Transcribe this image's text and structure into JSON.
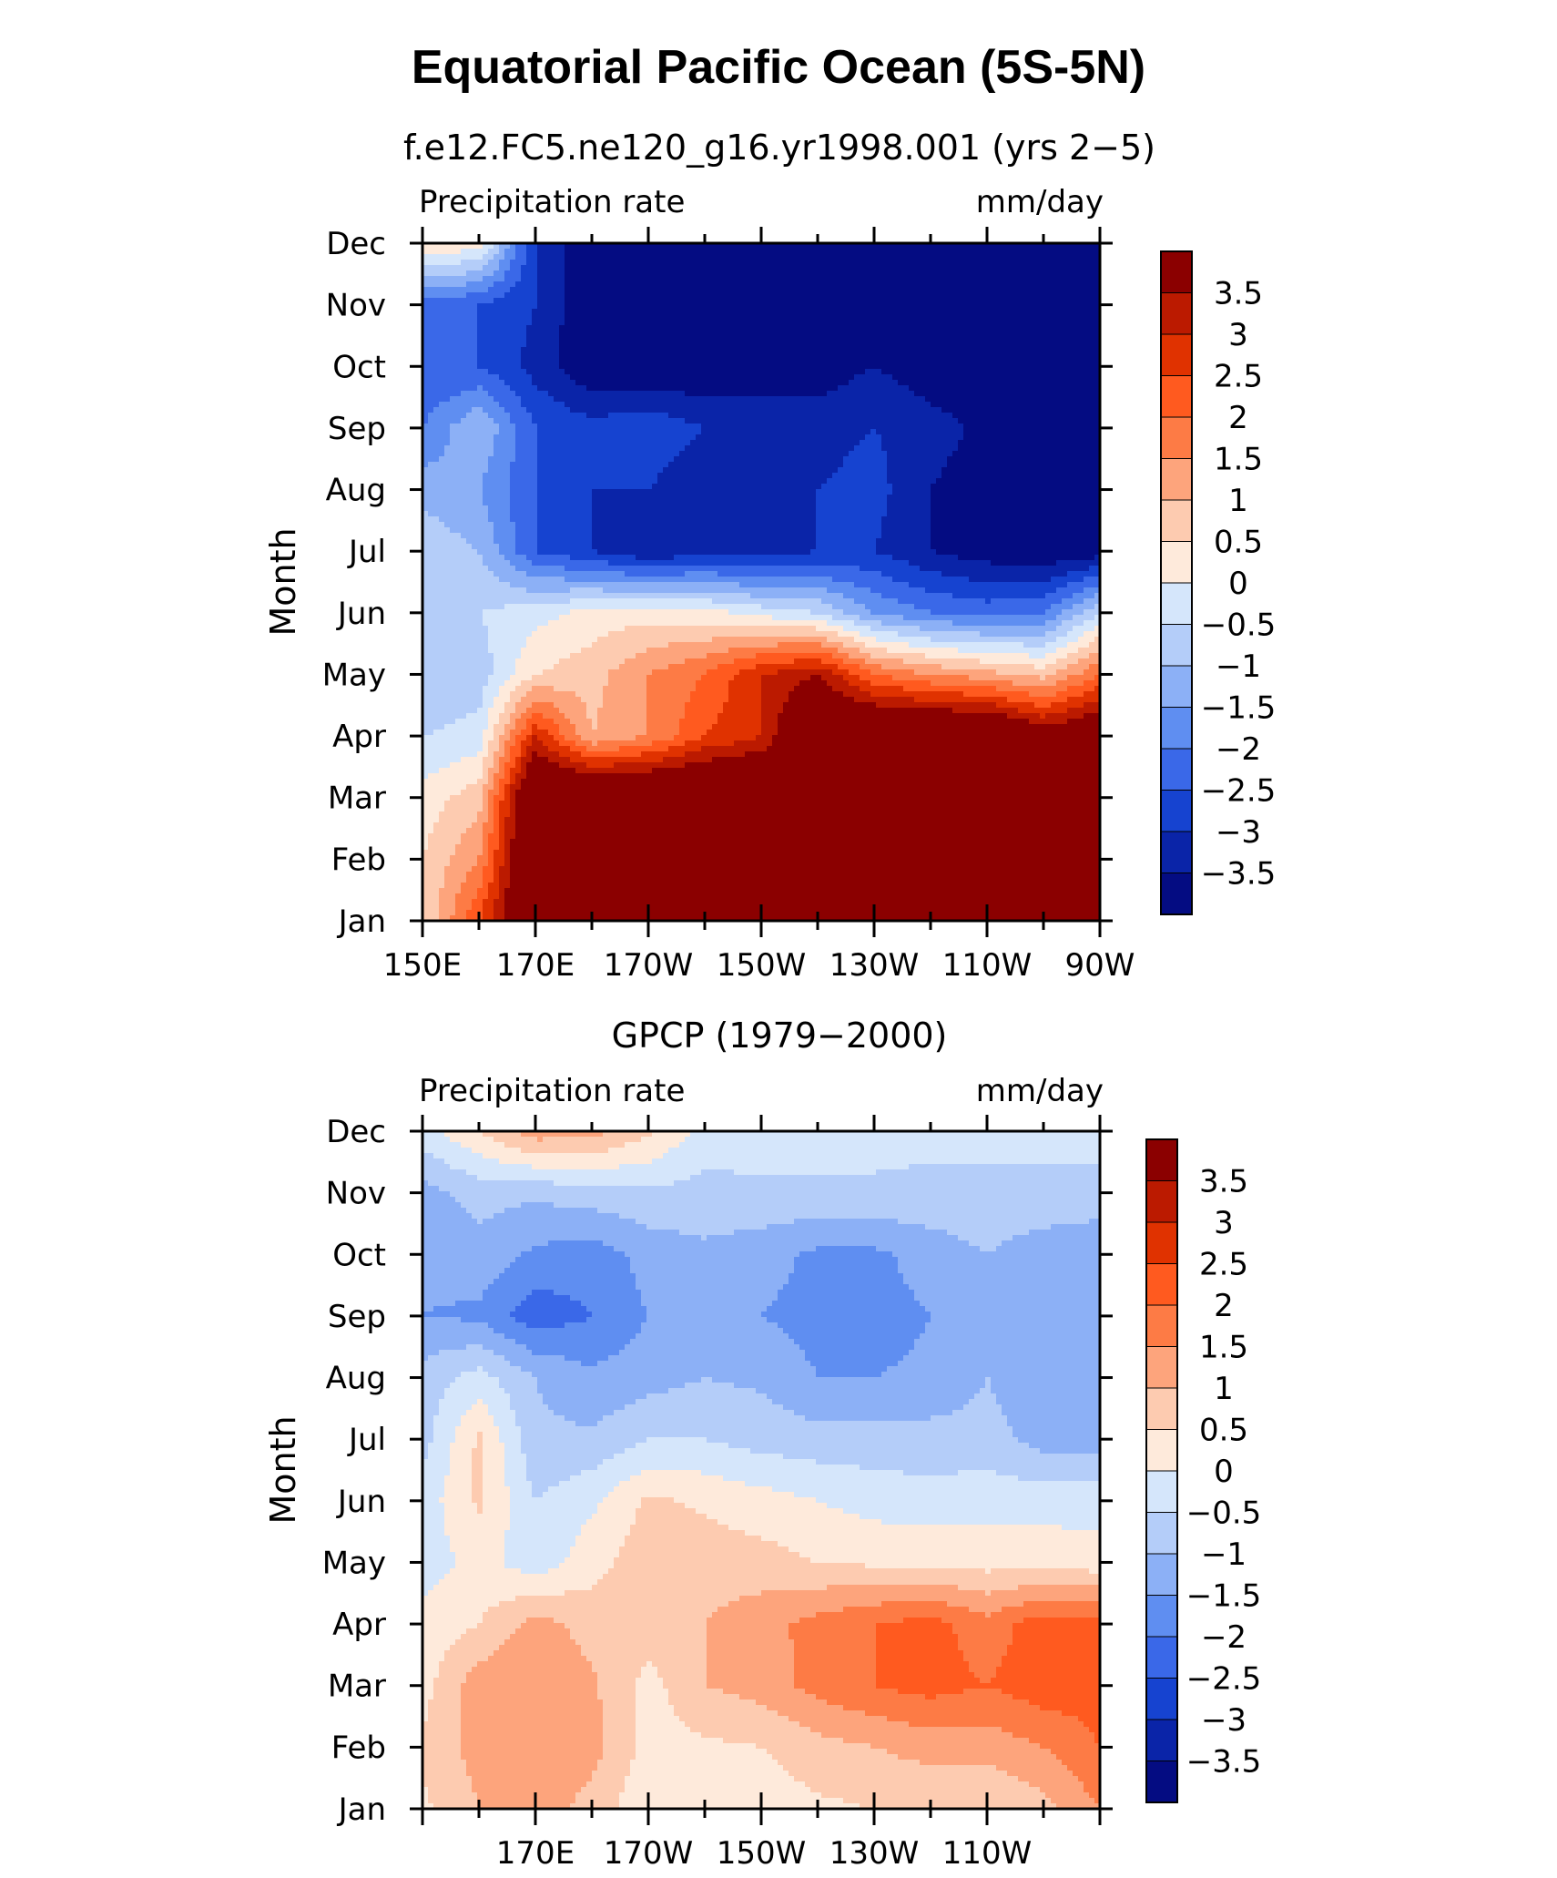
{
  "figure": {
    "title": "Equatorial Pacific Ocean (5S-5N)"
  },
  "colorbar": {
    "labels": [
      "3.5",
      "3",
      "2.5",
      "2",
      "1.5",
      "1",
      "0.5",
      "0",
      "−0.5",
      "−1",
      "−1.5",
      "−2",
      "−2.5",
      "−3",
      "−3.5"
    ],
    "colors": [
      "#8b0000",
      "#bb1a00",
      "#e03200",
      "#ff5a1f",
      "#fd7b45",
      "#fda47c",
      "#fdcbb0",
      "#feeadb",
      "#d5e6fb",
      "#b4cdf9",
      "#8cb0f6",
      "#5f8ef1",
      "#3a68e8",
      "#1643d0",
      "#0a24a8",
      "#040c82"
    ]
  },
  "chart_data": [
    {
      "type": "heatmap",
      "title": "f.e12.FC5.ne120_g16.yr1998.001 (yrs 2−5)",
      "left_label": "Precipitation rate",
      "right_label": "mm/day",
      "ylabel": "Month",
      "y_ticklabels": [
        "Jan",
        "Feb",
        "Mar",
        "Apr",
        "May",
        "Jun",
        "Jul",
        "Aug",
        "Sep",
        "Oct",
        "Nov",
        "Dec"
      ],
      "x_ticklabels": [
        "150E",
        "170E",
        "170W",
        "150W",
        "130W",
        "110W",
        "90W"
      ],
      "x_range_deg_east": [
        150,
        270
      ],
      "levels": [
        -3.5,
        -3,
        -2.5,
        -2,
        -1.5,
        -1,
        -0.5,
        0,
        0.5,
        1,
        1.5,
        2,
        2.5,
        3,
        3.5
      ],
      "x_lon": [
        150,
        160,
        170,
        180,
        190,
        200,
        210,
        220,
        230,
        240,
        250,
        260,
        270
      ],
      "months": [
        1,
        2,
        3,
        4,
        5,
        6,
        7,
        8,
        9,
        10,
        11,
        12
      ],
      "values": [
        [
          0.5,
          2.5,
          5,
          5,
          5,
          5,
          5,
          5,
          5,
          5,
          5,
          5,
          5
        ],
        [
          0.5,
          1.5,
          5,
          5,
          5,
          5,
          5,
          5,
          5,
          5,
          5,
          5,
          5
        ],
        [
          0.2,
          0.8,
          5,
          5,
          5,
          5,
          5,
          5,
          5,
          5,
          5,
          5,
          5
        ],
        [
          -0.5,
          -0.3,
          3,
          1,
          1.5,
          2.5,
          3,
          5,
          5,
          5,
          5,
          4,
          4.5
        ],
        [
          -1,
          -0.8,
          0.5,
          0.8,
          1.5,
          2,
          3,
          3.5,
          2,
          1.5,
          1.2,
          0.8,
          2
        ],
        [
          -0.8,
          -0.5,
          -0.2,
          0.2,
          0.3,
          0.2,
          -0.2,
          -0.5,
          -1.5,
          -2,
          -2.2,
          -2,
          -0.5
        ],
        [
          -0.6,
          -1,
          -2.5,
          -3,
          -3.5,
          -3.2,
          -3.3,
          -3,
          -3,
          -3.5,
          -3.8,
          -4,
          -3.8
        ],
        [
          -1.2,
          -1.5,
          -2.5,
          -3,
          -3,
          -3.5,
          -3.5,
          -3,
          -2.8,
          -3.5,
          -3.8,
          -4,
          -4
        ],
        [
          -2,
          -1,
          -2.5,
          -2.8,
          -2.6,
          -3,
          -3,
          -3.2,
          -3,
          -3.3,
          -3.6,
          -4,
          -4
        ],
        [
          -2.5,
          -2.5,
          -3.2,
          -4,
          -4,
          -4,
          -4,
          -3.8,
          -3.5,
          -3.8,
          -4,
          -4,
          -4
        ],
        [
          -2.2,
          -2.5,
          -3,
          -4,
          -4,
          -4,
          -4,
          -3.8,
          -3.5,
          -3.8,
          -4,
          -4,
          -4
        ],
        [
          0.5,
          0.3,
          -3,
          -4,
          -4,
          -4,
          -4,
          -4,
          -3.8,
          -4,
          -4,
          -4,
          -4
        ]
      ]
    },
    {
      "type": "heatmap",
      "title": "GPCP (1979−2000)",
      "left_label": "Precipitation rate",
      "right_label": "mm/day",
      "ylabel": "Month",
      "y_ticklabels": [
        "Jan",
        "Feb",
        "Mar",
        "Apr",
        "May",
        "Jun",
        "Jul",
        "Aug",
        "Sep",
        "Oct",
        "Nov",
        "Dec"
      ],
      "x_ticklabels": [
        "170E",
        "170W",
        "150W",
        "130W",
        "110W"
      ],
      "x_range_deg_east": [
        150,
        270
      ],
      "levels": [
        -3.5,
        -3,
        -2.5,
        -2,
        -1.5,
        -1,
        -0.5,
        0,
        0.5,
        1,
        1.5,
        2,
        2.5,
        3,
        3.5
      ],
      "x_lon": [
        150,
        160,
        170,
        180,
        190,
        200,
        210,
        220,
        230,
        240,
        250,
        260,
        270
      ],
      "months": [
        1,
        2,
        3,
        4,
        5,
        6,
        7,
        8,
        9,
        10,
        11,
        12
      ],
      "values": [
        [
          0.4,
          1,
          1.3,
          0.8,
          0.1,
          0.1,
          0.2,
          0.4,
          0.5,
          0.5,
          0.5,
          0.8,
          1.5
        ],
        [
          0.6,
          1.2,
          1.2,
          1.2,
          0.3,
          0.4,
          0.5,
          0.8,
          1,
          1.2,
          1.2,
          1.5,
          2
        ],
        [
          0.3,
          1.3,
          1.5,
          1.1,
          0.3,
          1,
          1.2,
          1.7,
          2,
          2.2,
          2,
          2.3,
          2.2
        ],
        [
          0.2,
          0.5,
          1.2,
          0.8,
          0.8,
          1,
          1.3,
          1.7,
          2,
          2.2,
          1.7,
          2.3,
          2.2
        ],
        [
          -0.3,
          0.2,
          -0.3,
          0.3,
          0.8,
          0.8,
          0.7,
          0.5,
          0.4,
          0.4,
          0.3,
          0.3,
          0.2
        ],
        [
          -0.3,
          0.6,
          -0.5,
          -0.1,
          0.6,
          0.4,
          0.2,
          0,
          -0.2,
          -0.3,
          -0.2,
          -0.2,
          -0.2
        ],
        [
          -0.7,
          0.6,
          -0.9,
          -0.9,
          -0.5,
          -0.5,
          -0.7,
          -0.8,
          -0.8,
          -0.8,
          -0.8,
          -1.2,
          -1.2
        ],
        [
          -0.8,
          -0.3,
          -1,
          -1.4,
          -1.2,
          -1,
          -1.1,
          -1.5,
          -1.5,
          -1.4,
          -1,
          -1.4,
          -1.4
        ],
        [
          -1.5,
          -1.6,
          -2.3,
          -2,
          -1.5,
          -1,
          -1.5,
          -1.7,
          -1.7,
          -1.5,
          -1,
          -1.5,
          -1.5
        ],
        [
          -1.4,
          -1.2,
          -1.6,
          -1.8,
          -1.3,
          -1.1,
          -1.3,
          -1.6,
          -1.6,
          -1.3,
          -1,
          -1.3,
          -1.5
        ],
        [
          -1.2,
          -0.8,
          -0.9,
          -0.7,
          -0.6,
          -0.7,
          -0.6,
          -0.6,
          -0.6,
          -0.6,
          -0.6,
          -0.6,
          -0.6
        ],
        [
          -0.2,
          0.5,
          1.3,
          1.2,
          0.6,
          -0.2,
          -0.2,
          -0.3,
          -0.3,
          -0.4,
          -0.4,
          -0.4,
          -0.4
        ]
      ]
    }
  ]
}
